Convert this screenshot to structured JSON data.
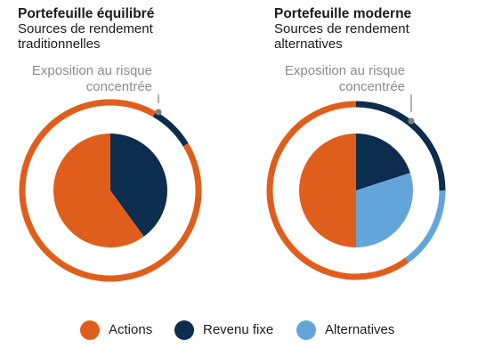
{
  "colors": {
    "actions": "#e05e1c",
    "revenu_fixe": "#0d2d4f",
    "alternatives": "#63a5d9",
    "leader": "#7f7f7f",
    "label_gray": "#8c8c8c"
  },
  "legend": [
    {
      "label": "Actions",
      "color": "#e05e1c"
    },
    {
      "label": "Revenu fixe",
      "color": "#0d2d4f"
    },
    {
      "label": "Alternatives",
      "color": "#63a5d9"
    }
  ],
  "chart_data": [
    {
      "type": "pie",
      "title": "Portefeuille équilibré",
      "subtitle": "Sources de rendement traditionnelles",
      "annotation": "Exposition au risque concentrée",
      "pie": [
        {
          "category": "Actions",
          "value": 60
        },
        {
          "category": "Revenu fixe",
          "value": 40
        }
      ],
      "risk_ring": [
        {
          "category": "Actions",
          "value": 92
        },
        {
          "category": "Revenu fixe",
          "value": 8
        }
      ]
    },
    {
      "type": "pie",
      "title": "Portefeuille moderne",
      "subtitle": "Sources de rendement alternatives",
      "annotation": "Exposition au risque concentrée",
      "pie": [
        {
          "category": "Actions",
          "value": 50
        },
        {
          "category": "Revenu fixe",
          "value": 20
        },
        {
          "category": "Alternatives",
          "value": 30
        }
      ],
      "risk_ring": [
        {
          "category": "Actions",
          "value": 60
        },
        {
          "category": "Revenu fixe",
          "value": 25
        },
        {
          "category": "Alternatives",
          "value": 15
        }
      ]
    }
  ]
}
